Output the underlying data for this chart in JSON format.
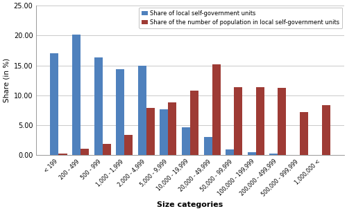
{
  "categories": [
    "< 199",
    "200 - 499",
    "500 - 999",
    "1,000 - 1,999",
    "2,000 - 4,999",
    "5,000 - 9,999",
    "10,000 - 19,999",
    "20,000 - 49,999",
    "50,000 - 99,999",
    "100,000 - 199,999",
    "200,000 - 499,999",
    "500,000 - 999,999",
    "1,000,000 <"
  ],
  "blue_values": [
    17.0,
    20.2,
    16.3,
    14.4,
    15.0,
    7.6,
    4.6,
    3.0,
    0.9,
    0.5,
    0.2,
    0.0,
    0.0
  ],
  "red_values": [
    0.25,
    1.05,
    1.9,
    3.4,
    7.9,
    8.8,
    10.8,
    15.2,
    11.4,
    11.4,
    11.2,
    7.2,
    8.3
  ],
  "blue_color": "#4F81BD",
  "red_color": "#9E3B35",
  "ylabel": "Share (in %)",
  "xlabel": "Size categories",
  "ylim": [
    0,
    25
  ],
  "yticks": [
    0.0,
    5.0,
    10.0,
    15.0,
    20.0,
    25.0
  ],
  "legend_blue": "Share of local self-government units",
  "legend_red": "Share of the number of population in local self-government units",
  "grid_color": "#C0C0C0",
  "background_color": "#FFFFFF",
  "bar_width": 0.38,
  "ylabel_fontsize": 7.5,
  "xlabel_fontsize": 8.0,
  "xtick_fontsize": 5.5,
  "ytick_fontsize": 7.0,
  "legend_fontsize": 6.0
}
